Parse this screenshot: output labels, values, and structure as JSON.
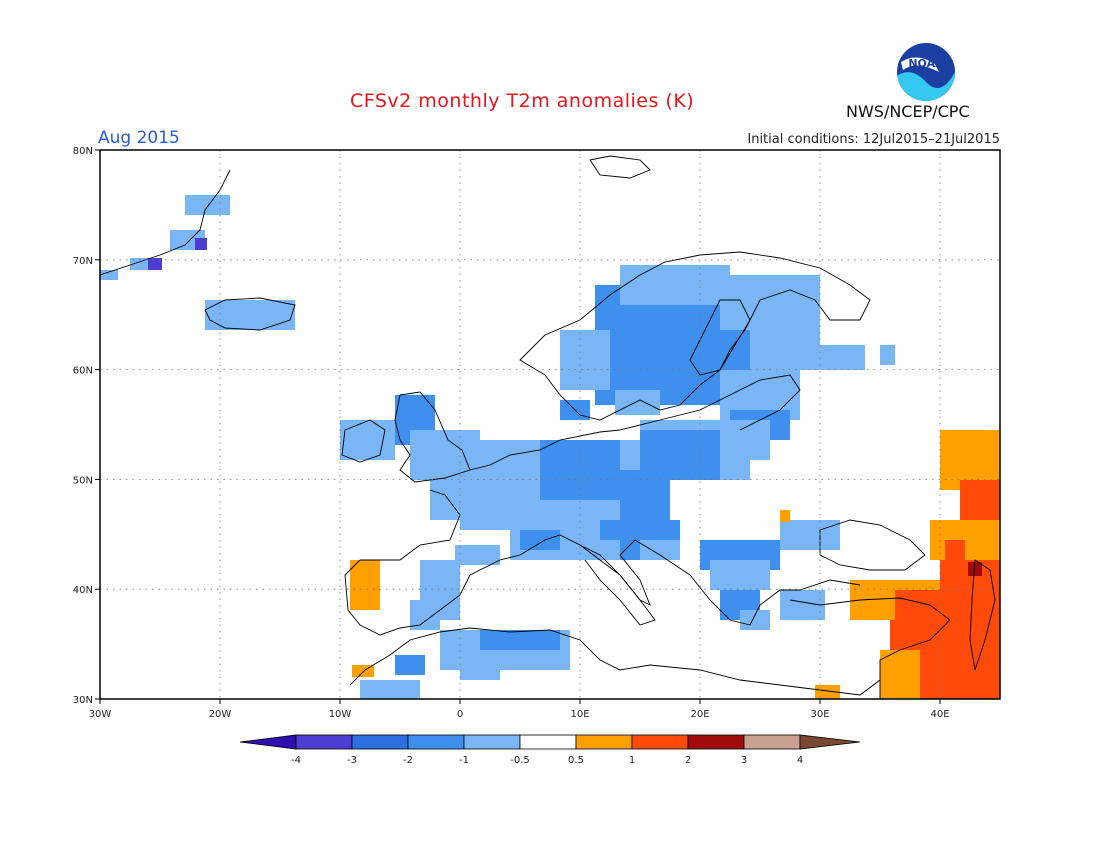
{
  "header": {
    "title": "CFSv2 monthly T2m anomalies (K)",
    "month": "Aug 2015",
    "initial_conditions": "Initial conditions: 12Jul2015–21Jul2015",
    "agency": "NWS/NCEP/CPC",
    "logo_text": "NOAA"
  },
  "map": {
    "lat_labels": [
      "80N",
      "70N",
      "60N",
      "50N",
      "40N",
      "30N"
    ],
    "lon_labels": [
      "30W",
      "20W",
      "10W",
      "0",
      "10E",
      "20E",
      "30E",
      "40E"
    ]
  },
  "legend": {
    "tick_labels": [
      "-4",
      "-3",
      "-2",
      "-1",
      "-0.5",
      "0.5",
      "1",
      "2",
      "3",
      "4"
    ],
    "colors": [
      "#2f0fb0",
      "#4b3ed0",
      "#2d6fe0",
      "#3f90ee",
      "#7ab6f5",
      "#ffffff",
      "#ffa000",
      "#ff4a0a",
      "#a00a0a",
      "#c8a090",
      "#7a4a30"
    ],
    "undercolor": "#2f0fb0",
    "overcolor": "#7a4a30"
  },
  "anomaly_colors": {
    "cold_strong": "#2d6fe0",
    "cold_mid": "#3f90ee",
    "cold_weak": "#7ab6f5",
    "warm_weak": "#ffa000",
    "warm_mid": "#ff4a0a",
    "warm_strong": "#a00a0a",
    "very_cold": "#4b3ed0"
  }
}
